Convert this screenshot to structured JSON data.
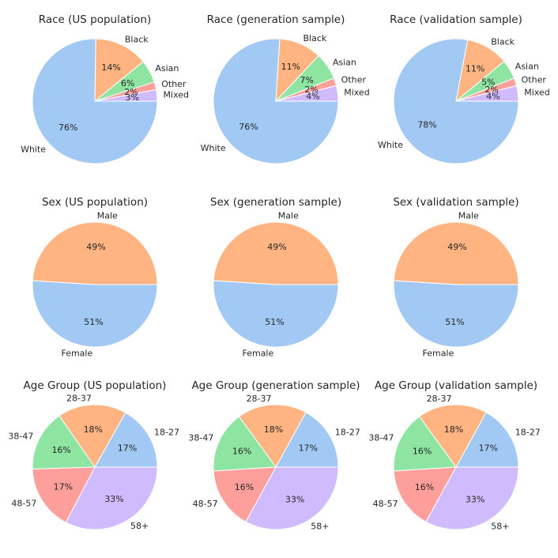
{
  "palette": {
    "blue": "#a1c9f4",
    "orange": "#ffb482",
    "green": "#8de5a1",
    "red": "#ff9f9b",
    "purple": "#d0bbff",
    "slice_edge": "#ffffff",
    "text": "#262626"
  },
  "chart_data": [
    {
      "type": "pie",
      "title": "Race (US population)",
      "start_angle_deg": 0,
      "counterclock": false,
      "slices": [
        {
          "label": "White",
          "value": 76,
          "pct": "76%",
          "color": "blue"
        },
        {
          "label": "Black",
          "value": 14,
          "pct": "14%",
          "color": "orange"
        },
        {
          "label": "Asian",
          "value": 6,
          "pct": "6%",
          "color": "green"
        },
        {
          "label": "Other",
          "value": 2,
          "pct": "2%",
          "color": "red"
        },
        {
          "label": "Mixed",
          "value": 3,
          "pct": "3%",
          "color": "purple"
        }
      ]
    },
    {
      "type": "pie",
      "title": "Race (generation sample)",
      "start_angle_deg": 0,
      "counterclock": false,
      "slices": [
        {
          "label": "White",
          "value": 76,
          "pct": "76%",
          "color": "blue"
        },
        {
          "label": "Black",
          "value": 11,
          "pct": "11%",
          "color": "orange"
        },
        {
          "label": "Asian",
          "value": 7,
          "pct": "7%",
          "color": "green"
        },
        {
          "label": "Other",
          "value": 2,
          "pct": "2%",
          "color": "red"
        },
        {
          "label": "Mixed",
          "value": 4,
          "pct": "4%",
          "color": "purple"
        }
      ]
    },
    {
      "type": "pie",
      "title": "Race (validation sample)",
      "start_angle_deg": 0,
      "counterclock": false,
      "slices": [
        {
          "label": "White",
          "value": 78,
          "pct": "78%",
          "color": "blue"
        },
        {
          "label": "Black",
          "value": 11,
          "pct": "11%",
          "color": "orange"
        },
        {
          "label": "Asian",
          "value": 5,
          "pct": "5%",
          "color": "green"
        },
        {
          "label": "Other",
          "value": 2,
          "pct": "2%",
          "color": "red"
        },
        {
          "label": "Mixed",
          "value": 4,
          "pct": "4%",
          "color": "purple"
        }
      ]
    },
    {
      "type": "pie",
      "title": "Sex (US population)",
      "start_angle_deg": 0,
      "counterclock": false,
      "slices": [
        {
          "label": "Female",
          "value": 51,
          "pct": "51%",
          "color": "blue"
        },
        {
          "label": "Male",
          "value": 49,
          "pct": "49%",
          "color": "orange"
        }
      ]
    },
    {
      "type": "pie",
      "title": "Sex (generation sample)",
      "start_angle_deg": 0,
      "counterclock": false,
      "slices": [
        {
          "label": "Female",
          "value": 51,
          "pct": "51%",
          "color": "blue"
        },
        {
          "label": "Male",
          "value": 49,
          "pct": "49%",
          "color": "orange"
        }
      ]
    },
    {
      "type": "pie",
      "title": "Sex (validation sample)",
      "start_angle_deg": 0,
      "counterclock": false,
      "slices": [
        {
          "label": "Female",
          "value": 51,
          "pct": "51%",
          "color": "blue"
        },
        {
          "label": "Male",
          "value": 49,
          "pct": "49%",
          "color": "orange"
        }
      ]
    },
    {
      "type": "pie",
      "title": "Age Group (US population)",
      "start_angle_deg": 0,
      "counterclock": true,
      "slices": [
        {
          "label": "18-27",
          "value": 17,
          "pct": "17%",
          "color": "blue"
        },
        {
          "label": "28-37",
          "value": 18,
          "pct": "18%",
          "color": "orange"
        },
        {
          "label": "38-47",
          "value": 16,
          "pct": "16%",
          "color": "green"
        },
        {
          "label": "48-57",
          "value": 17,
          "pct": "17%",
          "color": "red"
        },
        {
          "label": "58+",
          "value": 33,
          "pct": "33%",
          "color": "purple"
        }
      ]
    },
    {
      "type": "pie",
      "title": "Age Group (generation sample)",
      "start_angle_deg": 0,
      "counterclock": true,
      "slices": [
        {
          "label": "18-27",
          "value": 17,
          "pct": "17%",
          "color": "blue"
        },
        {
          "label": "28-37",
          "value": 18,
          "pct": "18%",
          "color": "orange"
        },
        {
          "label": "38-47",
          "value": 16,
          "pct": "16%",
          "color": "green"
        },
        {
          "label": "48-57",
          "value": 16,
          "pct": "16%",
          "color": "red"
        },
        {
          "label": "58+",
          "value": 33,
          "pct": "33%",
          "color": "purple"
        }
      ]
    },
    {
      "type": "pie",
      "title": "Age Group (validation sample)",
      "start_angle_deg": 0,
      "counterclock": true,
      "slices": [
        {
          "label": "18-27",
          "value": 17,
          "pct": "17%",
          "color": "blue"
        },
        {
          "label": "28-37",
          "value": 18,
          "pct": "18%",
          "color": "orange"
        },
        {
          "label": "38-47",
          "value": 16,
          "pct": "16%",
          "color": "green"
        },
        {
          "label": "48-57",
          "value": 16,
          "pct": "16%",
          "color": "red"
        },
        {
          "label": "58+",
          "value": 33,
          "pct": "33%",
          "color": "purple"
        }
      ]
    }
  ]
}
